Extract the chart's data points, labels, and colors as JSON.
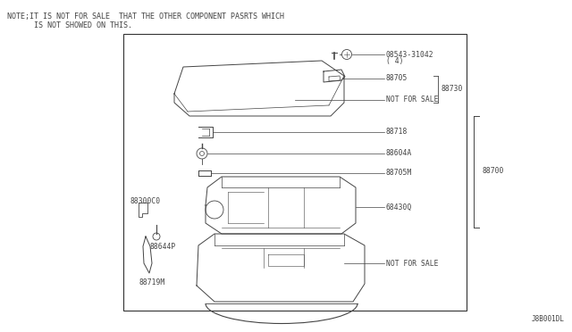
{
  "bg_color": "#ffffff",
  "border_color": "#333333",
  "line_color": "#444444",
  "text_color": "#444444",
  "note_line1": "NOTE;IT IS NOT FOR SALE  THAT THE OTHER COMPONENT PASRTS WHICH",
  "note_line2": "      IS NOT SHOWED ON THIS.",
  "bottom_right_label": "J8B001DL",
  "right_label": "88700"
}
